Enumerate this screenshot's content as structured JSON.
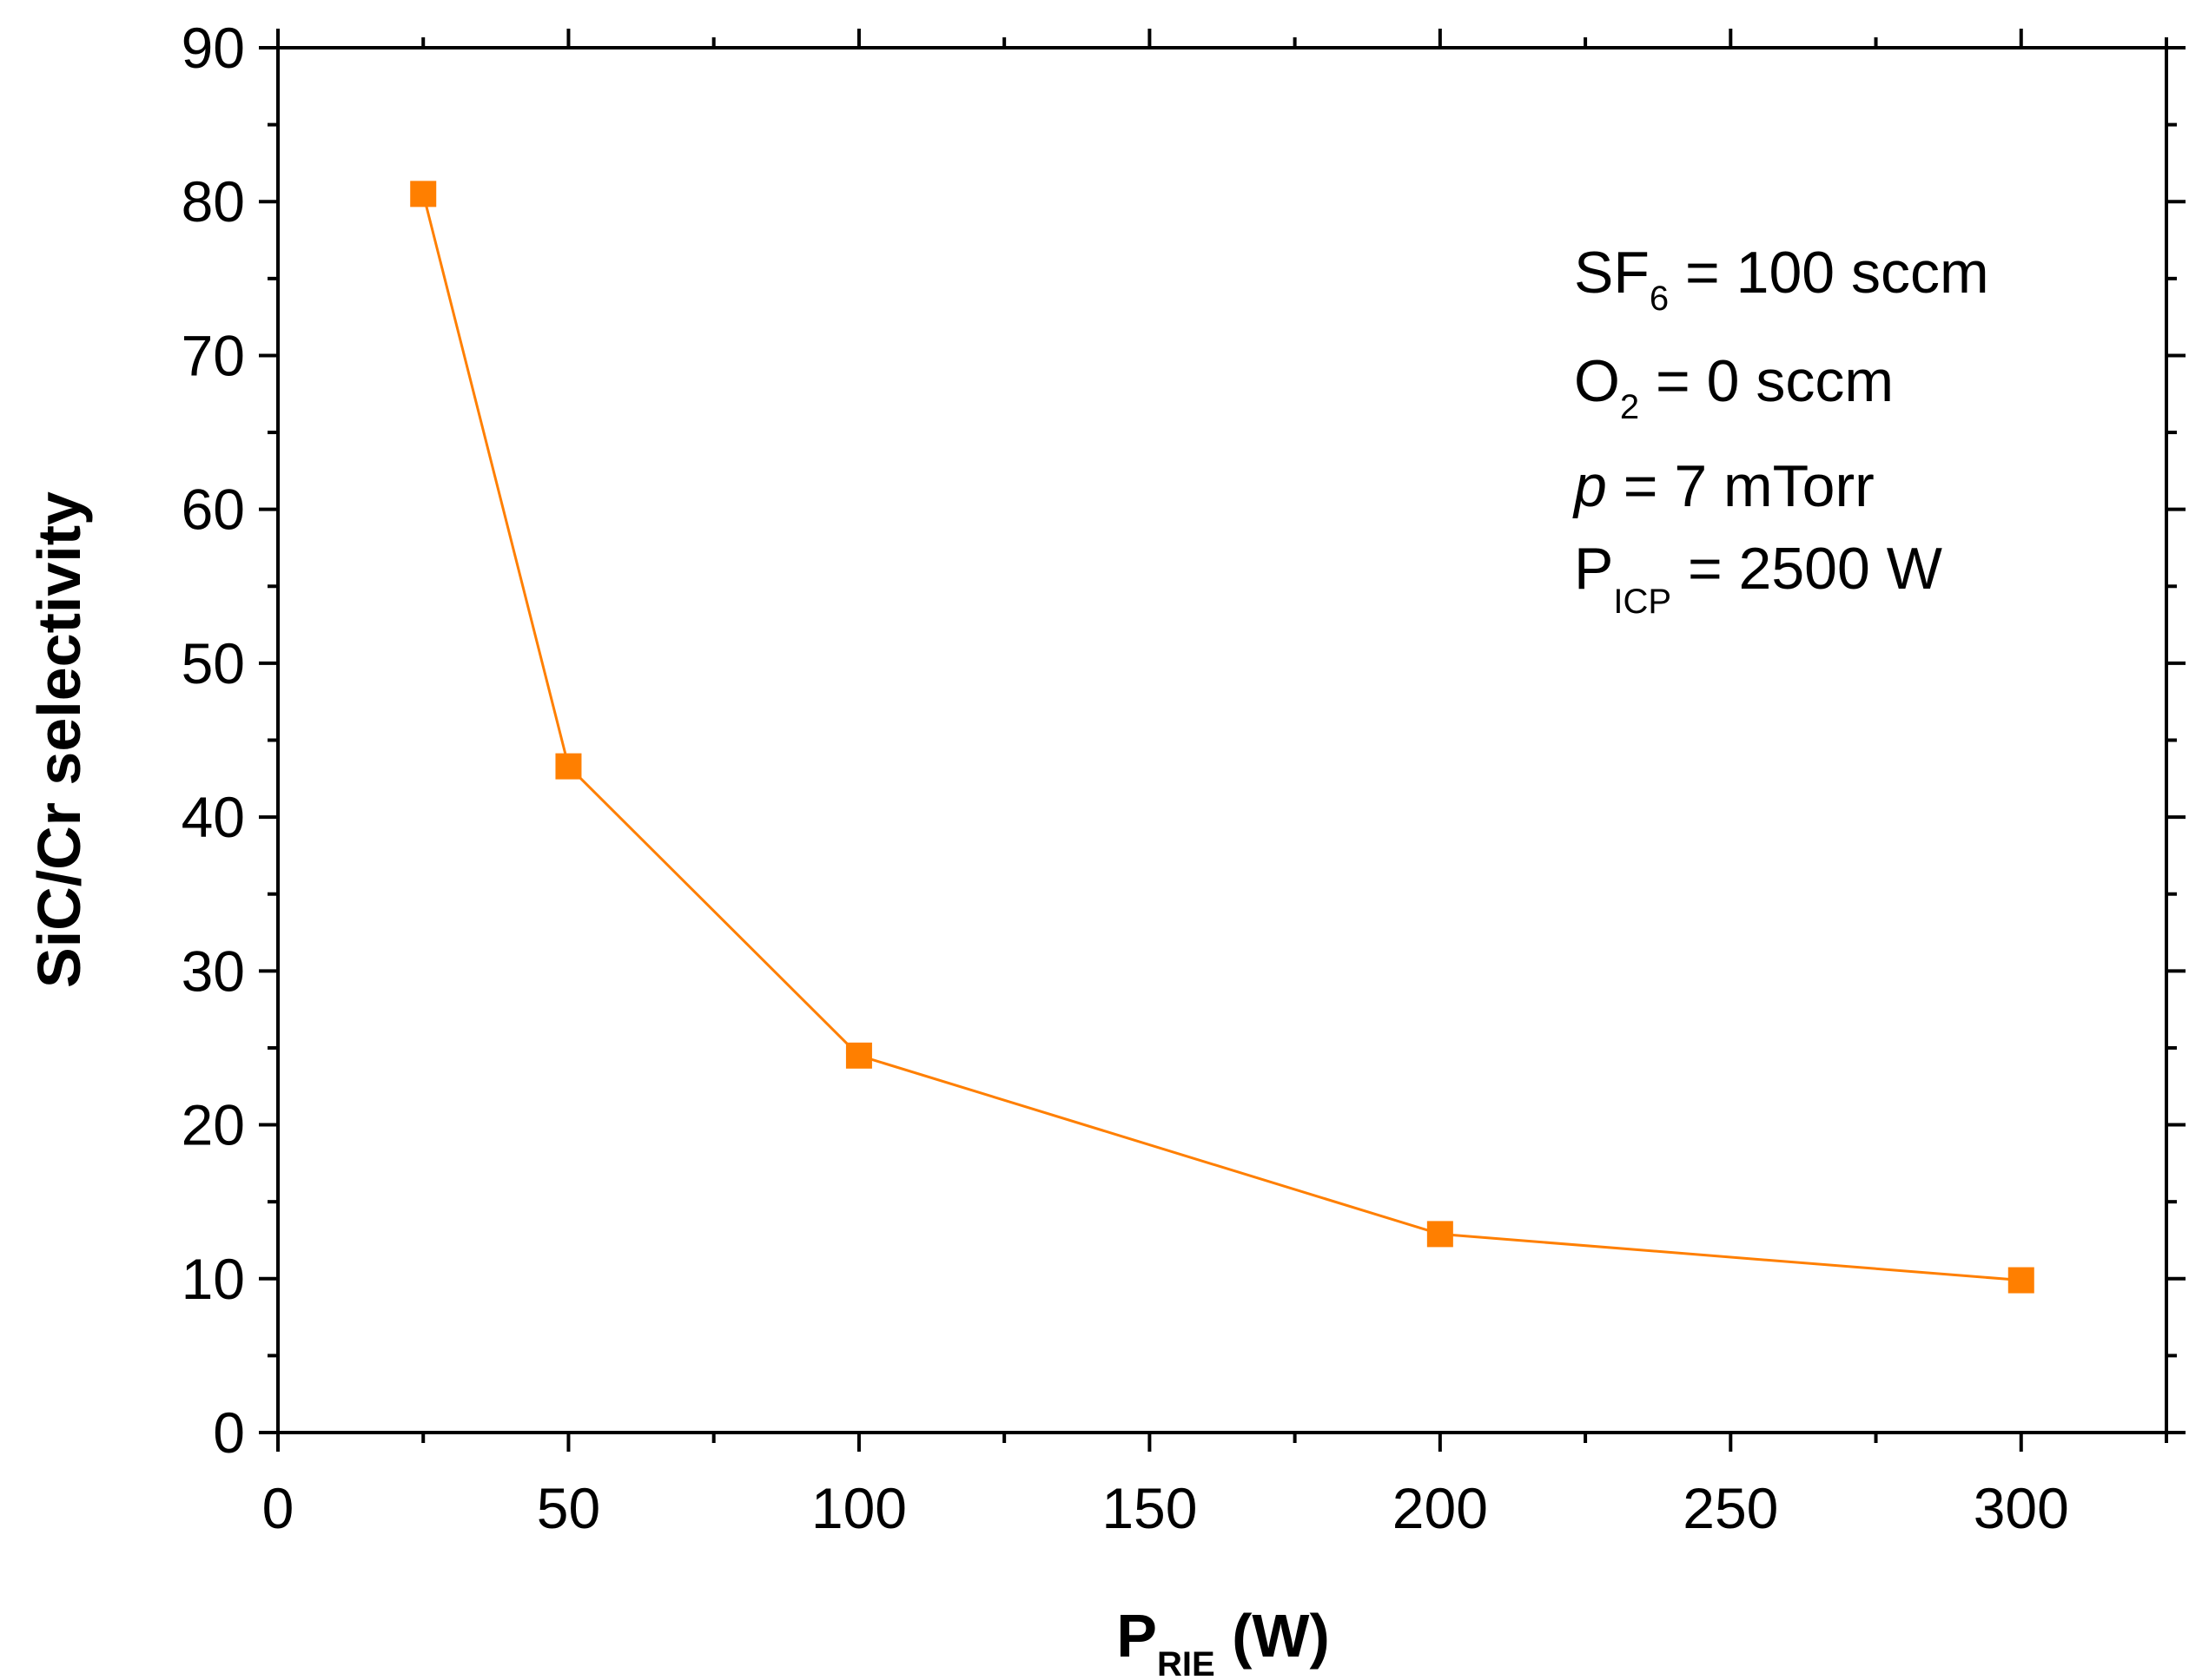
{
  "chart_data": {
    "type": "line",
    "title": "",
    "xlabel": {
      "main": "P",
      "sub": "RIE",
      "tail": " (W)"
    },
    "ylabel": "SiC/Cr selectivity",
    "xlim": [
      0,
      325
    ],
    "ylim": [
      0,
      90
    ],
    "xticks": [
      0,
      50,
      100,
      150,
      200,
      250,
      300
    ],
    "yticks": [
      0,
      10,
      20,
      30,
      40,
      50,
      60,
      70,
      80,
      90
    ],
    "grid": false,
    "series": [
      {
        "name": "SiC/Cr selectivity",
        "marker": "square",
        "color": "#FF7F00",
        "x": [
          25,
          50,
          100,
          200,
          300
        ],
        "y": [
          80.5,
          43.3,
          24.5,
          12.9,
          9.9
        ]
      }
    ],
    "annotations": [
      {
        "id": "sf6",
        "pre": "SF",
        "sub": "6",
        "post": " = 100 sccm"
      },
      {
        "id": "o2",
        "pre": "O",
        "sub": "2",
        "post": " = 0 sccm"
      },
      {
        "id": "p",
        "italic": "p",
        "post": " = 7 mTorr"
      },
      {
        "id": "picp",
        "pre": "P",
        "sub": "ICP",
        "post": " = 2500 W"
      }
    ]
  }
}
